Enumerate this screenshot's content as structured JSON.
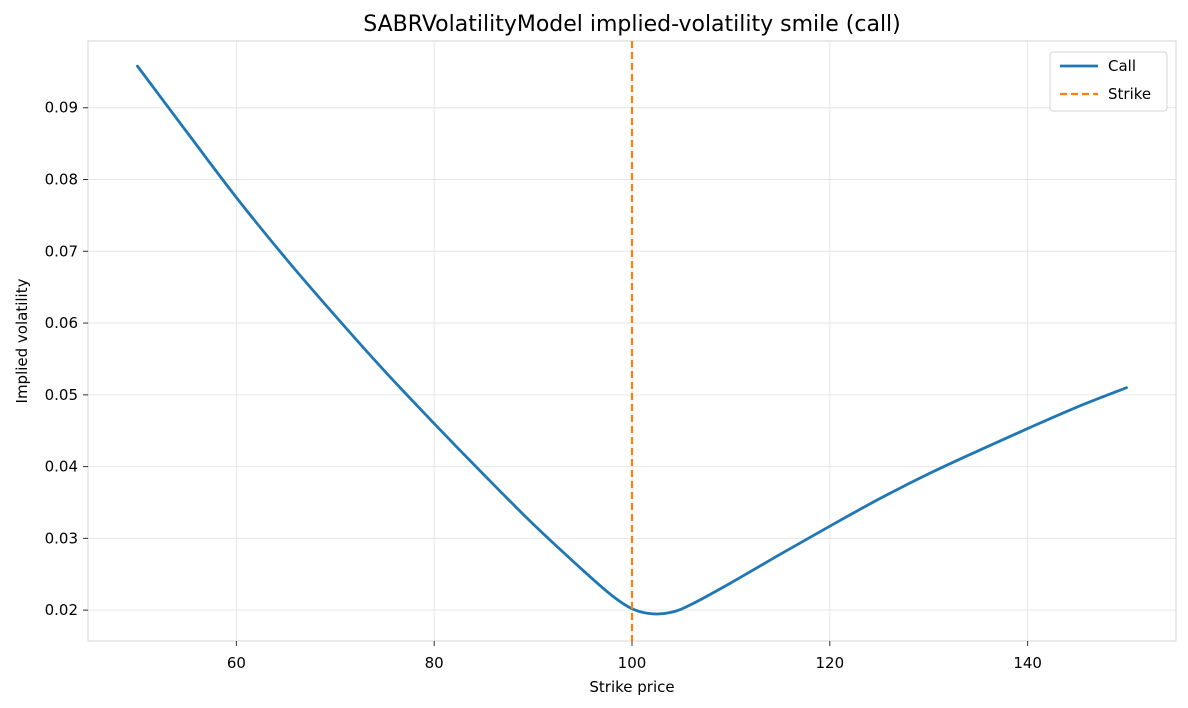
{
  "chart_data": {
    "type": "line",
    "title": "SABRVolatilityModel implied-volatility smile (call)",
    "xlabel": "Strike price",
    "ylabel": "Implied volatility",
    "xlim": [
      45,
      155
    ],
    "ylim": [
      0.0157,
      0.0993
    ],
    "xticks": [
      60,
      80,
      100,
      120,
      140
    ],
    "yticks": [
      0.02,
      0.03,
      0.04,
      0.05,
      0.06,
      0.07,
      0.08,
      0.09
    ],
    "xtick_labels": [
      "60",
      "80",
      "100",
      "120",
      "140"
    ],
    "ytick_labels": [
      "0.02",
      "0.03",
      "0.04",
      "0.05",
      "0.06",
      "0.07",
      "0.08",
      "0.09"
    ],
    "grid": true,
    "legend_position": "top-right",
    "series": [
      {
        "name": "Call",
        "color": "#1f77b4",
        "style": "solid",
        "x": [
          50,
          55,
          60,
          65,
          70,
          75,
          80,
          85,
          90,
          95,
          98,
          100,
          102,
          104,
          106,
          110,
          115,
          120,
          125,
          130,
          135,
          140,
          145,
          150
        ],
        "y": [
          0.0958,
          0.0866,
          0.0775,
          0.069,
          0.061,
          0.0533,
          0.046,
          0.0389,
          0.032,
          0.0256,
          0.022,
          0.0202,
          0.0195,
          0.0197,
          0.0208,
          0.0238,
          0.0278,
          0.0317,
          0.0355,
          0.039,
          0.0422,
          0.0453,
          0.0483,
          0.051
        ]
      },
      {
        "name": "Strike",
        "color": "#ff7f0e",
        "style": "dashed",
        "vline_x": 100
      }
    ]
  }
}
